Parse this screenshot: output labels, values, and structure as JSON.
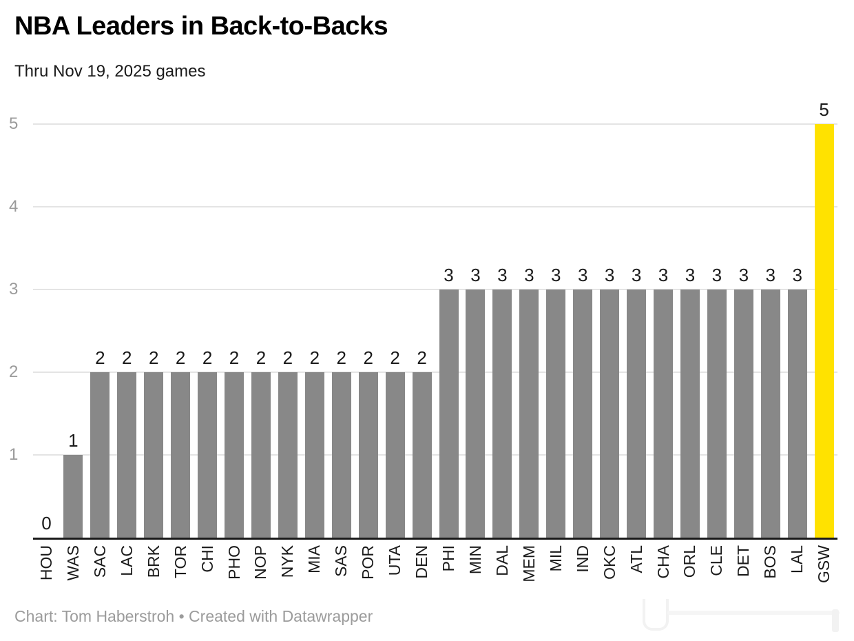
{
  "header": {
    "title": "NBA Leaders in Back-to-Backs",
    "subtitle": "Thru Nov 19, 2025 games"
  },
  "footer": {
    "credit": "Chart: Tom Haberstroh • Created with Datawrapper"
  },
  "chart_data": {
    "type": "bar",
    "title": "NBA Leaders in Back-to-Backs",
    "subtitle": "Thru Nov 19, 2025 games",
    "categories": [
      "HOU",
      "WAS",
      "SAC",
      "LAC",
      "BRK",
      "TOR",
      "CHI",
      "PHO",
      "NOP",
      "NYK",
      "MIA",
      "SAS",
      "POR",
      "UTA",
      "DEN",
      "PHI",
      "MIN",
      "DAL",
      "MEM",
      "MIL",
      "IND",
      "OKC",
      "ATL",
      "CHA",
      "ORL",
      "CLE",
      "DET",
      "BOS",
      "LAL",
      "GSW"
    ],
    "values": [
      0,
      1,
      2,
      2,
      2,
      2,
      2,
      2,
      2,
      2,
      2,
      2,
      2,
      2,
      2,
      3,
      3,
      3,
      3,
      3,
      3,
      3,
      3,
      3,
      3,
      3,
      3,
      3,
      3,
      5
    ],
    "value_labels": true,
    "xlabel": "",
    "ylabel": "",
    "ylim": [
      0,
      5
    ],
    "yticks": [
      1,
      2,
      3,
      4,
      5
    ],
    "grid": true,
    "legend": false,
    "bar_color": "#888888",
    "highlight_category": "GSW",
    "highlight_color": "#ffe200"
  },
  "colors": {
    "bar": "#888888",
    "highlight": "#ffe200",
    "grid_line": "#e4e4e4",
    "axis_line": "#1a1a1a",
    "tick_label": "#9b9b9b",
    "text": "#1a1a1a",
    "footer_text": "#9b9b9b",
    "background": "#ffffff"
  }
}
